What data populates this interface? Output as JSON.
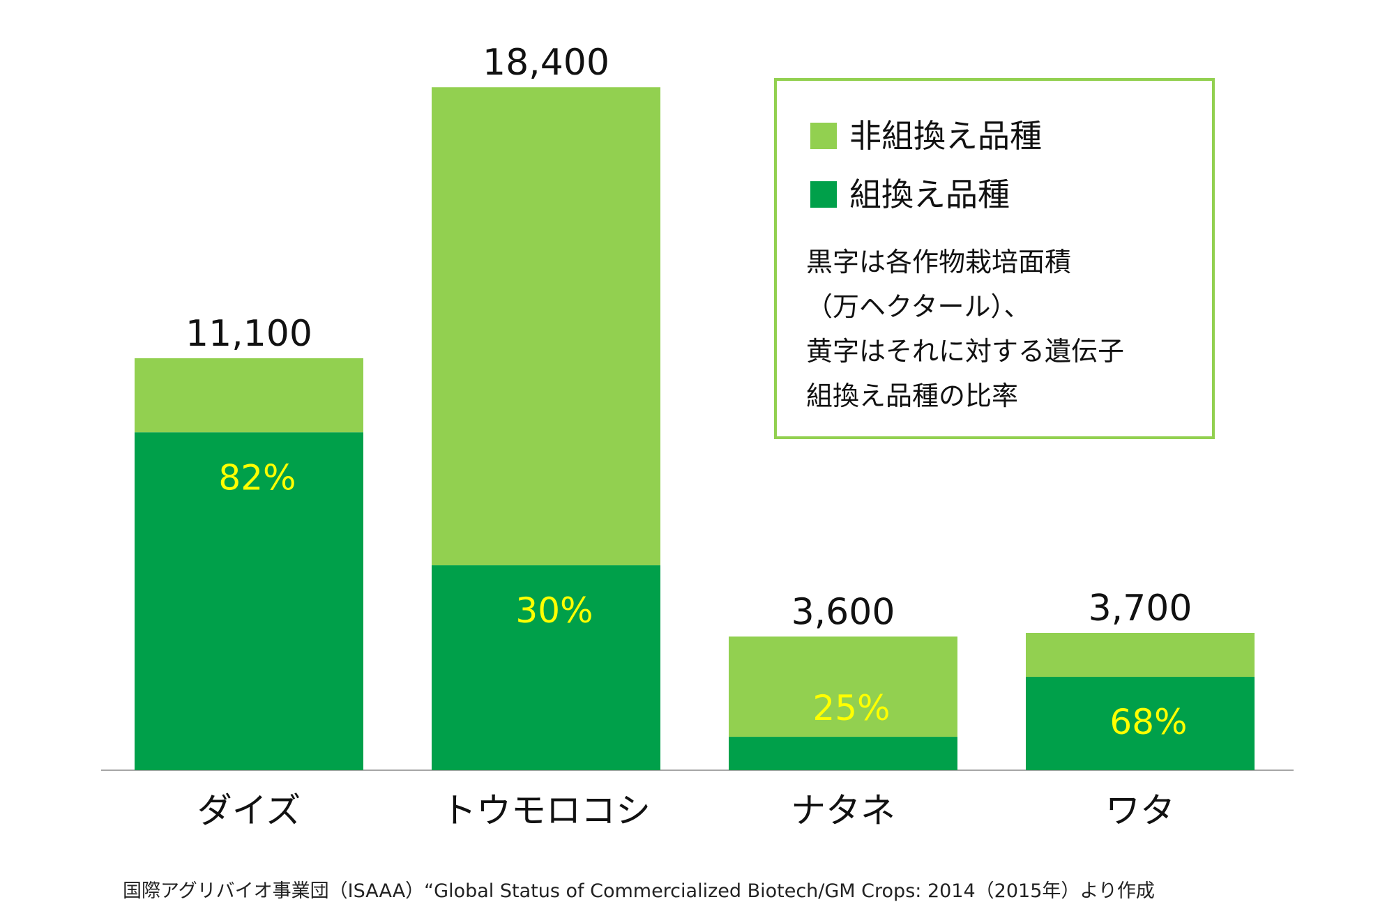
{
  "chart_data": {
    "type": "bar",
    "stacked": true,
    "categories": [
      "ダイズ",
      "トウモロコシ",
      "ナタネ",
      "ワタ"
    ],
    "totals": [
      11100,
      18400,
      3600,
      3700
    ],
    "total_labels": [
      "11,100",
      "18,400",
      "3,600",
      "3,700"
    ],
    "gm_share": [
      0.82,
      0.3,
      0.25,
      0.68
    ],
    "gm_share_labels": [
      "82%",
      "30%",
      "25%",
      "68%"
    ],
    "series": [
      {
        "name": "組換え品種",
        "color": "#00A04A"
      },
      {
        "name": "非組換え品種",
        "color": "#92D050"
      }
    ],
    "percent_label_color": "#FFFF00",
    "ylim": [
      0,
      20000
    ],
    "grid": false,
    "legend_position": "top-right"
  },
  "legend": {
    "items": [
      {
        "label": "非組換え品種",
        "color": "#92D050"
      },
      {
        "label": "組換え品種",
        "color": "#00A04A"
      }
    ],
    "note_lines": [
      "黒字は各作物栽培面積",
      "（万ヘクタール）、",
      "黄字はそれに対する遺伝子",
      "組換え品種の比率"
    ],
    "border_color": "#92D050"
  },
  "source": "国際アグリバイオ事業団（ISAAA）“Global Status of Commercialized Biotech/GM Crops: 2014（2015年）より作成"
}
